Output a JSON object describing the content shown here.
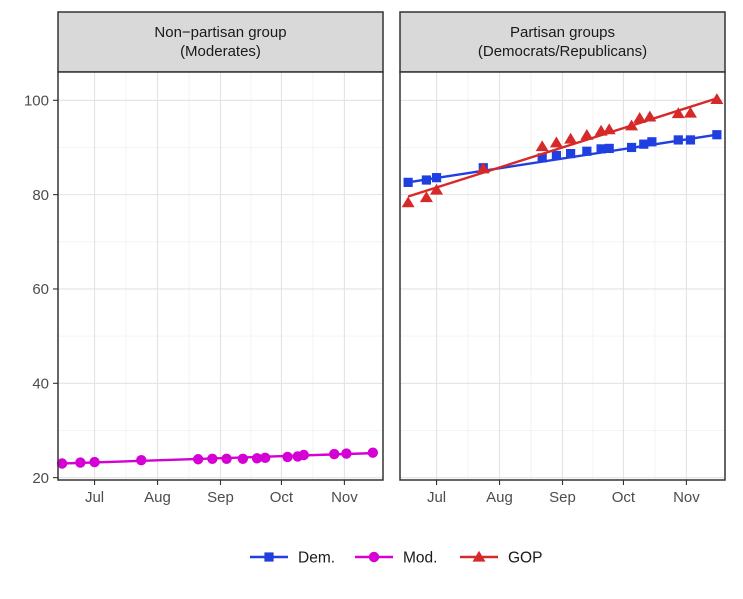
{
  "chart_data": {
    "type": "line",
    "panels": [
      {
        "strip_line1": "Non−partisan group",
        "strip_line2": "(Moderates)",
        "series": [
          "Mod."
        ]
      },
      {
        "strip_line1": "Partisan groups",
        "strip_line2": "(Democrats/Republicans)",
        "series": [
          "Dem.",
          "GOP"
        ]
      }
    ],
    "x_axis": {
      "type": "date",
      "range": [
        "2020-06-13",
        "2020-11-20"
      ],
      "ticks": [
        {
          "date": "2020-07-01",
          "label": "Jul"
        },
        {
          "date": "2020-08-01",
          "label": "Aug"
        },
        {
          "date": "2020-09-01",
          "label": "Sep"
        },
        {
          "date": "2020-10-01",
          "label": "Oct"
        },
        {
          "date": "2020-11-01",
          "label": "Nov"
        }
      ]
    },
    "y_axis": {
      "range": [
        19.5,
        106
      ],
      "ticks": [
        20,
        40,
        60,
        80,
        100
      ]
    },
    "grid": true,
    "legend_position": "bottom",
    "series": [
      {
        "name": "Dem.",
        "color": "#1f3fe0",
        "marker": "square",
        "points": [
          [
            "2020-06-17",
            82.6
          ],
          [
            "2020-06-26",
            83.1
          ],
          [
            "2020-07-01",
            83.6
          ],
          [
            "2020-07-24",
            85.7
          ],
          [
            "2020-08-22",
            87.8
          ],
          [
            "2020-08-29",
            88.3
          ],
          [
            "2020-09-05",
            88.7
          ],
          [
            "2020-09-13",
            89.2
          ],
          [
            "2020-09-20",
            89.7
          ],
          [
            "2020-09-24",
            89.8
          ],
          [
            "2020-10-05",
            90.0
          ],
          [
            "2020-10-11",
            90.7
          ],
          [
            "2020-10-15",
            91.2
          ],
          [
            "2020-10-28",
            91.6
          ],
          [
            "2020-11-03",
            91.6
          ],
          [
            "2020-11-16",
            92.7
          ]
        ]
      },
      {
        "name": "Mod.",
        "color": "#d400d4",
        "marker": "circle",
        "points": [
          [
            "2020-06-15",
            23.0
          ],
          [
            "2020-06-24",
            23.2
          ],
          [
            "2020-07-01",
            23.3
          ],
          [
            "2020-07-24",
            23.7
          ],
          [
            "2020-08-21",
            23.9
          ],
          [
            "2020-08-28",
            24.0
          ],
          [
            "2020-09-04",
            24.0
          ],
          [
            "2020-09-12",
            24.0
          ],
          [
            "2020-09-19",
            24.1
          ],
          [
            "2020-09-23",
            24.2
          ],
          [
            "2020-10-04",
            24.4
          ],
          [
            "2020-10-09",
            24.5
          ],
          [
            "2020-10-12",
            24.8
          ],
          [
            "2020-10-27",
            25.0
          ],
          [
            "2020-11-02",
            25.1
          ],
          [
            "2020-11-15",
            25.3
          ]
        ],
        "trend": [
          [
            "2020-06-15",
            23.0
          ],
          [
            "2020-11-15",
            25.2
          ]
        ]
      },
      {
        "name": "GOP",
        "color": "#d62a2a",
        "marker": "triangle",
        "points": [
          [
            "2020-06-17",
            78.3
          ],
          [
            "2020-06-26",
            79.4
          ],
          [
            "2020-07-01",
            81.0
          ],
          [
            "2020-07-24",
            85.5
          ],
          [
            "2020-08-22",
            90.2
          ],
          [
            "2020-08-29",
            91.0
          ],
          [
            "2020-09-05",
            91.8
          ],
          [
            "2020-09-13",
            92.6
          ],
          [
            "2020-09-20",
            93.5
          ],
          [
            "2020-09-24",
            93.8
          ],
          [
            "2020-10-05",
            94.6
          ],
          [
            "2020-10-09",
            96.2
          ],
          [
            "2020-10-14",
            96.5
          ],
          [
            "2020-10-28",
            97.2
          ],
          [
            "2020-11-03",
            97.3
          ],
          [
            "2020-11-16",
            100.2
          ]
        ],
        "trend": [
          [
            "2020-06-17",
            79.6
          ],
          [
            "2020-11-16",
            100.4
          ]
        ]
      }
    ]
  }
}
